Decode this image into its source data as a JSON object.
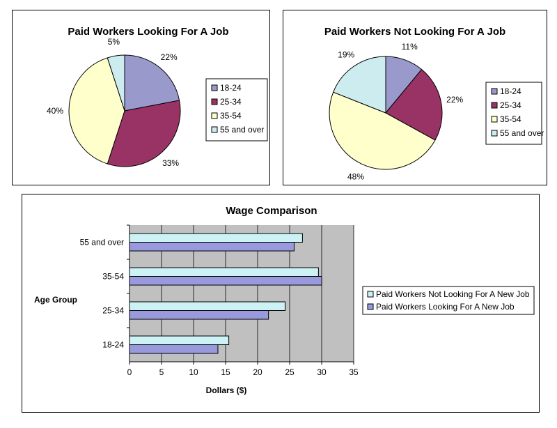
{
  "colors": {
    "c18_24": "#9999CC",
    "c25_34": "#993366",
    "c35_54": "#FFFFCC",
    "c55_over": "#CCECF0",
    "bar_not_looking": "#CCF2F5",
    "bar_looking": "#9999DD",
    "plot_bg": "#C0C0C0"
  },
  "chart_data": [
    {
      "type": "pie",
      "title": "Paid Workers Looking For A Job",
      "legend_placement": "right",
      "slices": [
        {
          "label": "18-24",
          "value": 22,
          "value_label": "22%",
          "color": "#9999CC"
        },
        {
          "label": "25-34",
          "value": 33,
          "value_label": "33%",
          "color": "#993366"
        },
        {
          "label": "35-54",
          "value": 40,
          "value_label": "40%",
          "color": "#FFFFCC"
        },
        {
          "label": "55 and over",
          "value": 5,
          "value_label": "5%",
          "color": "#CCECF0"
        }
      ]
    },
    {
      "type": "pie",
      "title": "Paid Workers Not Looking For A Job",
      "legend_placement": "right",
      "slices": [
        {
          "label": "18-24",
          "value": 11,
          "value_label": "11%",
          "color": "#9999CC"
        },
        {
          "label": "25-34",
          "value": 22,
          "value_label": "22%",
          "color": "#993366"
        },
        {
          "label": "35-54",
          "value": 48,
          "value_label": "48%",
          "color": "#FFFFCC"
        },
        {
          "label": "55 and over",
          "value": 19,
          "value_label": "19%",
          "color": "#CCECF0"
        }
      ]
    },
    {
      "type": "bar",
      "orientation": "horizontal",
      "title": "Wage Comparison",
      "xlabel": "Dollars ($)",
      "ylabel": "Age Group",
      "xlim": [
        0,
        35
      ],
      "xticks": [
        0,
        5,
        10,
        15,
        20,
        25,
        30,
        35
      ],
      "grid": true,
      "legend_placement": "right",
      "categories": [
        "55 and over",
        "35-54",
        "25-34",
        "18-24"
      ],
      "series": [
        {
          "name": "Paid Workers Not Looking For A New Job",
          "color": "#CCF2F5",
          "values": [
            27,
            29.5,
            24.3,
            15.5
          ]
        },
        {
          "name": "Paid Workers Looking For A New Job",
          "color": "#9999DD",
          "values": [
            25.7,
            30,
            21.7,
            13.8
          ]
        }
      ]
    }
  ]
}
